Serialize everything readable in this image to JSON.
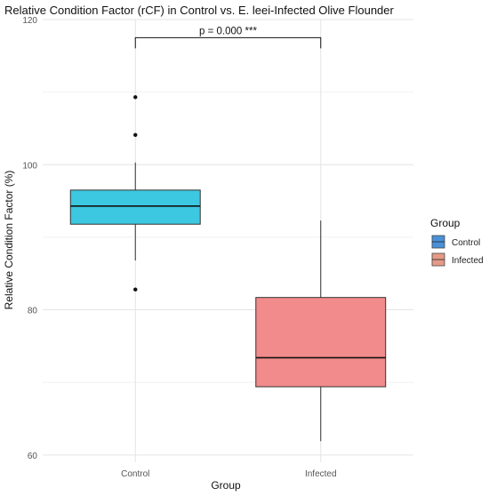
{
  "chart_data": {
    "type": "box",
    "title": "Relative Condition Factor (rCF) in Control vs. E. leei-Infected Olive Flounder",
    "xlabel": "Group",
    "ylabel": "Relative Condition Factor (%)",
    "ylim": [
      59,
      120
    ],
    "yticks": [
      60,
      80,
      100,
      120
    ],
    "categories": [
      "Control",
      "Infected"
    ],
    "boxes": [
      {
        "name": "Control",
        "whisker_low": 86.8,
        "q1": 91.8,
        "median": 94.3,
        "q3": 96.5,
        "whisker_high": 100.3,
        "outliers": [
          82.8,
          104.1,
          109.3
        ],
        "color": "#3cc8e0"
      },
      {
        "name": "Infected",
        "whisker_low": 61.9,
        "q1": 69.4,
        "median": 73.4,
        "q3": 81.7,
        "whisker_high": 92.3,
        "outliers": [],
        "color": "#f28b8b"
      }
    ],
    "annotation": {
      "text": "p = 0.000 ***",
      "y": 117.5
    },
    "legend": {
      "title": "Group",
      "position": "right",
      "entries": [
        {
          "label": "Control",
          "color": "#4a90d9"
        },
        {
          "label": "Infected",
          "color": "#e59a86"
        }
      ]
    },
    "grid": true
  }
}
